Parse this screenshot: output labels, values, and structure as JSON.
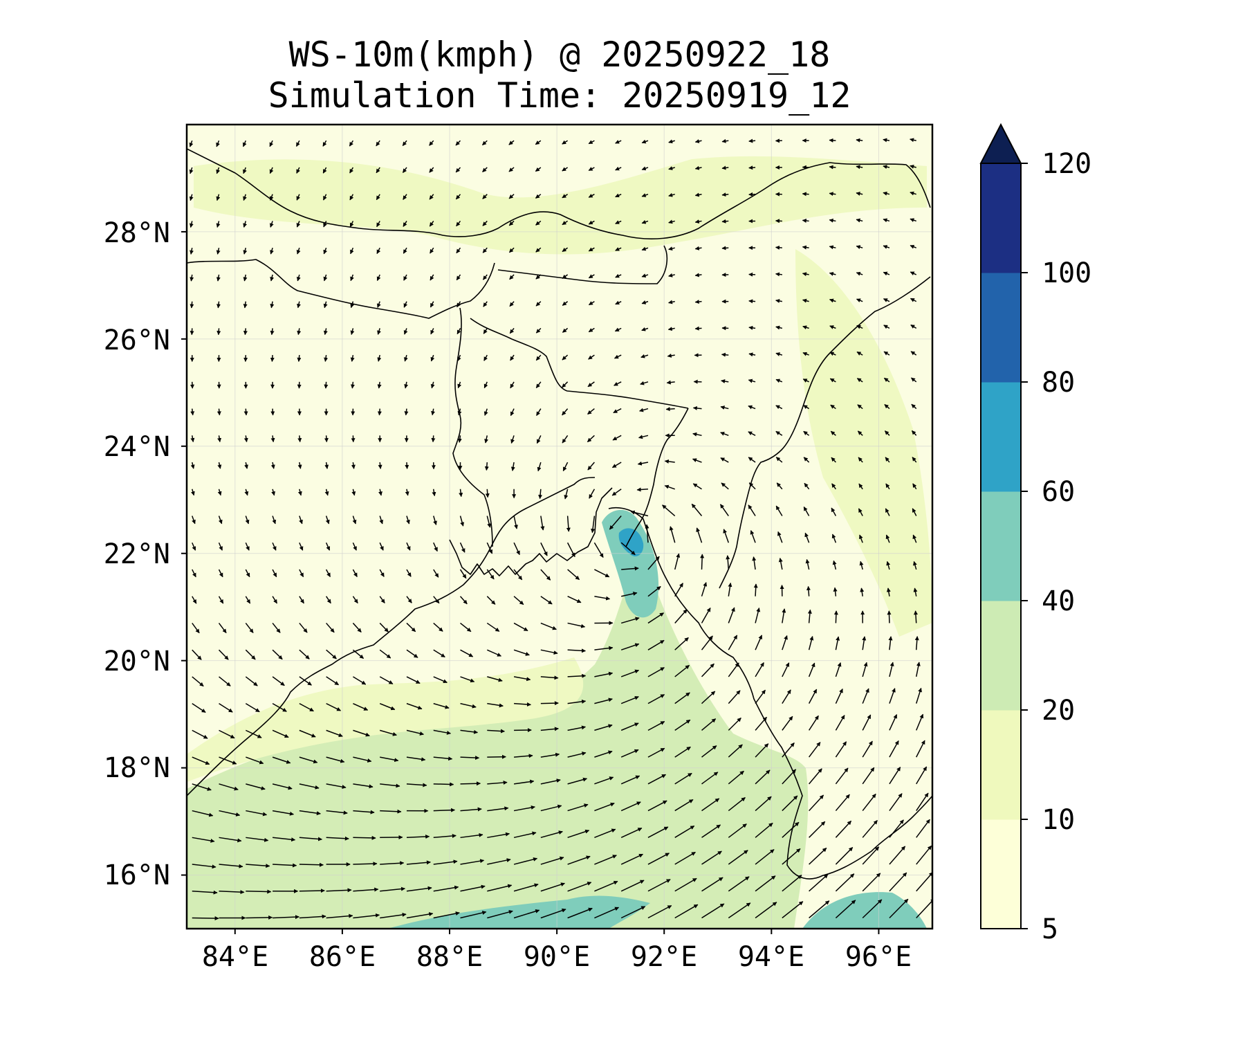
{
  "title": {
    "line1": "WS-10m(kmph) @ 20250922_18",
    "line2": "Simulation Time: 20250919_12"
  },
  "map": {
    "projection": "PlateCarree",
    "lon_range": [
      83.1,
      97.0
    ],
    "lat_range": [
      15.0,
      30.0
    ],
    "lon_ticks": [
      {
        "value": 84,
        "label": "84°E"
      },
      {
        "value": 86,
        "label": "86°E"
      },
      {
        "value": 88,
        "label": "88°E"
      },
      {
        "value": 90,
        "label": "90°E"
      },
      {
        "value": 92,
        "label": "92°E"
      },
      {
        "value": 94,
        "label": "94°E"
      },
      {
        "value": 96,
        "label": "96°E"
      }
    ],
    "lat_ticks": [
      {
        "value": 16,
        "label": "16°N"
      },
      {
        "value": 18,
        "label": "18°N"
      },
      {
        "value": 20,
        "label": "20°N"
      },
      {
        "value": 22,
        "label": "22°N"
      },
      {
        "value": 24,
        "label": "24°N"
      },
      {
        "value": 26,
        "label": "26°N"
      },
      {
        "value": 28,
        "label": "28°N"
      }
    ],
    "gridlines": true,
    "field": "10 m wind speed (kmph), filled contours with wind vectors",
    "wind_center_of_circulation": {
      "lon": 91.4,
      "lat": 22.3
    },
    "max_speed_region": {
      "lon": 91.4,
      "lat": 22.2,
      "range_kmph": "60-80"
    }
  },
  "colorbar": {
    "levels": [
      5,
      10,
      20,
      40,
      60,
      80,
      100,
      120
    ],
    "tick_labels": [
      "5",
      "10",
      "20",
      "40",
      "60",
      "80",
      "100",
      "120"
    ],
    "colors": [
      "#fdffd8",
      "#eff9bd",
      "#cdebb4",
      "#7fcdbb",
      "#2fa3c7",
      "#2263ab",
      "#1c2f83"
    ],
    "extend_color": "#0d1f52",
    "extend": "max"
  }
}
